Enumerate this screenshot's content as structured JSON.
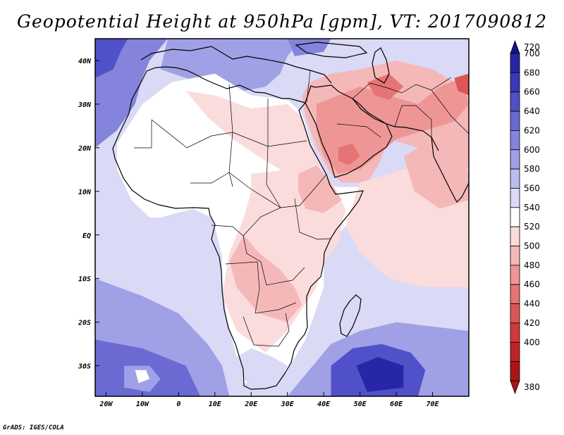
{
  "title": "Geopotential Height at 950hPa [gpm], VT: 2017090812",
  "credit": "GrADS: IGES/COLA",
  "map": {
    "lon_range": [
      -23,
      80
    ],
    "lat_range": [
      -37,
      45
    ],
    "lat_ticks": [
      {
        "value": 40,
        "label": "40N"
      },
      {
        "value": 30,
        "label": "30N"
      },
      {
        "value": 20,
        "label": "20N"
      },
      {
        "value": 10,
        "label": "10N"
      },
      {
        "value": 0,
        "label": "EQ"
      },
      {
        "value": -10,
        "label": "10S"
      },
      {
        "value": -20,
        "label": "20S"
      },
      {
        "value": -30,
        "label": "30S"
      }
    ],
    "lon_ticks": [
      {
        "value": -20,
        "label": "20W"
      },
      {
        "value": -10,
        "label": "10W"
      },
      {
        "value": 0,
        "label": "0"
      },
      {
        "value": 10,
        "label": "10E"
      },
      {
        "value": 20,
        "label": "20E"
      },
      {
        "value": 30,
        "label": "30E"
      },
      {
        "value": 40,
        "label": "40E"
      },
      {
        "value": 50,
        "label": "50E"
      },
      {
        "value": 60,
        "label": "60E"
      },
      {
        "value": 70,
        "label": "70E"
      }
    ],
    "features": [
      {
        "name": "sea-mid",
        "level": 560,
        "pts": [
          [
            -23,
            5
          ],
          [
            -8,
            3
          ],
          [
            2,
            -2
          ],
          [
            12,
            -14
          ],
          [
            16,
            -25
          ],
          [
            20,
            -32
          ],
          [
            28,
            -33
          ],
          [
            35,
            -27
          ],
          [
            42,
            -20
          ],
          [
            48,
            -15
          ],
          [
            55,
            -13
          ],
          [
            65,
            -12
          ],
          [
            80,
            -12
          ],
          [
            80,
            -37
          ],
          [
            -23,
            -37
          ]
        ]
      },
      {
        "name": "sea-south-atl",
        "level": 600,
        "pts": [
          [
            -23,
            -10
          ],
          [
            -10,
            -14
          ],
          [
            0,
            -18
          ],
          [
            8,
            -25
          ],
          [
            12,
            -30
          ],
          [
            14,
            -37
          ],
          [
            -23,
            -37
          ]
        ]
      },
      {
        "name": "sea-south-atl-deep",
        "level": 640,
        "pts": [
          [
            -23,
            -24
          ],
          [
            -10,
            -26
          ],
          [
            2,
            -30
          ],
          [
            6,
            -37
          ],
          [
            -23,
            -37
          ]
        ]
      },
      {
        "name": "sea-atl-low-ring",
        "level": 600,
        "pts": [
          [
            -15,
            -30
          ],
          [
            -8,
            -30
          ],
          [
            -5,
            -33
          ],
          [
            -8,
            -36
          ],
          [
            -15,
            -35
          ]
        ]
      },
      {
        "name": "sea-atl-low",
        "level": 540,
        "pts": [
          [
            -12,
            -31
          ],
          [
            -9,
            -31
          ],
          [
            -8,
            -33
          ],
          [
            -11,
            -34
          ]
        ]
      },
      {
        "name": "sea-indian",
        "level": 600,
        "pts": [
          [
            35,
            -32
          ],
          [
            42,
            -25
          ],
          [
            50,
            -22
          ],
          [
            60,
            -20
          ],
          [
            70,
            -21
          ],
          [
            80,
            -22
          ],
          [
            80,
            -37
          ],
          [
            30,
            -37
          ]
        ]
      },
      {
        "name": "sea-indian-deep",
        "level": 660,
        "pts": [
          [
            42,
            -30
          ],
          [
            48,
            -26
          ],
          [
            56,
            -25
          ],
          [
            64,
            -27
          ],
          [
            68,
            -31
          ],
          [
            66,
            -37
          ],
          [
            42,
            -37
          ]
        ]
      },
      {
        "name": "sea-indian-core",
        "level": 700,
        "pts": [
          [
            49,
            -30
          ],
          [
            55,
            -28
          ],
          [
            62,
            -30
          ],
          [
            62,
            -35
          ],
          [
            52,
            -36
          ]
        ]
      },
      {
        "name": "sea-north-atl",
        "level": 620,
        "pts": [
          [
            -23,
            45
          ],
          [
            -23,
            20
          ],
          [
            -17,
            24
          ],
          [
            -12,
            30
          ],
          [
            -10,
            36
          ],
          [
            -8,
            40
          ],
          [
            -3,
            45
          ]
        ]
      },
      {
        "name": "sea-north-atl-deep",
        "level": 660,
        "pts": [
          [
            -23,
            45
          ],
          [
            -23,
            36
          ],
          [
            -18,
            38
          ],
          [
            -16,
            42
          ],
          [
            -14,
            45
          ]
        ]
      },
      {
        "name": "sea-med-high",
        "level": 600,
        "pts": [
          [
            -3,
            45
          ],
          [
            -5,
            38
          ],
          [
            2,
            36
          ],
          [
            10,
            34
          ],
          [
            18,
            33
          ],
          [
            24,
            34
          ],
          [
            28,
            37
          ],
          [
            30,
            41
          ],
          [
            34,
            45
          ]
        ]
      },
      {
        "name": "sea-black",
        "level": 620,
        "pts": [
          [
            30,
            45
          ],
          [
            32,
            41
          ],
          [
            40,
            42
          ],
          [
            42,
            45
          ]
        ]
      },
      {
        "name": "sea-east-north",
        "level": 560,
        "pts": [
          [
            42,
            45
          ],
          [
            45,
            40
          ],
          [
            52,
            38
          ],
          [
            56,
            42
          ],
          [
            54,
            45
          ]
        ]
      },
      {
        "name": "land-sahara",
        "level": 540,
        "pts": [
          [
            -17,
            21
          ],
          [
            -10,
            30
          ],
          [
            -2,
            35
          ],
          [
            10,
            37
          ],
          [
            20,
            32
          ],
          [
            30,
            31
          ],
          [
            34,
            28
          ],
          [
            37,
            20
          ],
          [
            40,
            14
          ],
          [
            43,
            11
          ],
          [
            51,
            11
          ],
          [
            46,
            2
          ],
          [
            40,
            -4
          ],
          [
            40,
            -12
          ],
          [
            35,
            -24
          ],
          [
            30,
            -31
          ],
          [
            24,
            -34
          ],
          [
            18,
            -34
          ],
          [
            16,
            -28
          ],
          [
            13,
            -18
          ],
          [
            12,
            -10
          ],
          [
            12,
            -5
          ],
          [
            10,
            2
          ],
          [
            9,
            4
          ],
          [
            4,
            6
          ],
          [
            -5,
            4
          ],
          [
            -8,
            4
          ],
          [
            -13,
            8
          ],
          [
            -17,
            15
          ]
        ]
      },
      {
        "name": "land-north-pink",
        "level": 520,
        "pts": [
          [
            2,
            33
          ],
          [
            10,
            32
          ],
          [
            20,
            29
          ],
          [
            30,
            30
          ],
          [
            34,
            27
          ],
          [
            37,
            20
          ],
          [
            40,
            14
          ],
          [
            30,
            14
          ],
          [
            22,
            18
          ],
          [
            15,
            22
          ],
          [
            8,
            27
          ]
        ]
      },
      {
        "name": "land-east-africa",
        "level": 520,
        "pts": [
          [
            20,
            14
          ],
          [
            30,
            15
          ],
          [
            38,
            16
          ],
          [
            42,
            12
          ],
          [
            46,
            6
          ],
          [
            44,
            -2
          ],
          [
            40,
            -6
          ],
          [
            38,
            -12
          ],
          [
            34,
            -17
          ],
          [
            30,
            -22
          ],
          [
            24,
            -27
          ],
          [
            16,
            -22
          ],
          [
            12,
            -14
          ],
          [
            14,
            -4
          ],
          [
            18,
            4
          ],
          [
            20,
            10
          ]
        ]
      },
      {
        "name": "land-congo",
        "level": 500,
        "pts": [
          [
            18,
            0
          ],
          [
            22,
            -4
          ],
          [
            28,
            -8
          ],
          [
            32,
            -12
          ],
          [
            34,
            -16
          ],
          [
            30,
            -20
          ],
          [
            22,
            -18
          ],
          [
            16,
            -12
          ],
          [
            14,
            -6
          ]
        ]
      },
      {
        "name": "land-ethiopia",
        "level": 500,
        "pts": [
          [
            33,
            14
          ],
          [
            38,
            16
          ],
          [
            42,
            12
          ],
          [
            45,
            8
          ],
          [
            40,
            5
          ],
          [
            35,
            6
          ],
          [
            33,
            10
          ]
        ]
      },
      {
        "name": "land-cape",
        "level": 560,
        "pts": [
          [
            16,
            -28
          ],
          [
            20,
            -26
          ],
          [
            26,
            -28
          ],
          [
            30,
            -30
          ],
          [
            28,
            -33
          ],
          [
            20,
            -35
          ],
          [
            17,
            -32
          ]
        ]
      },
      {
        "name": "arabia",
        "level": 500,
        "pts": [
          [
            34,
            32
          ],
          [
            36,
            35
          ],
          [
            42,
            37
          ],
          [
            50,
            38
          ],
          [
            60,
            40
          ],
          [
            70,
            38
          ],
          [
            80,
            33
          ],
          [
            80,
            16
          ],
          [
            76,
            10
          ],
          [
            72,
            12
          ],
          [
            66,
            20
          ],
          [
            58,
            22
          ],
          [
            55,
            16
          ],
          [
            52,
            12
          ],
          [
            45,
            12
          ],
          [
            42,
            14
          ],
          [
            38,
            20
          ],
          [
            35,
            27
          ]
        ]
      },
      {
        "name": "arabia-deep",
        "level": 480,
        "pts": [
          [
            38,
            30
          ],
          [
            44,
            32
          ],
          [
            50,
            34
          ],
          [
            58,
            32
          ],
          [
            66,
            30
          ],
          [
            72,
            34
          ],
          [
            78,
            36
          ],
          [
            80,
            30
          ],
          [
            76,
            26
          ],
          [
            68,
            24
          ],
          [
            60,
            22
          ],
          [
            56,
            19
          ],
          [
            50,
            15
          ],
          [
            44,
            14
          ],
          [
            40,
            18
          ],
          [
            38,
            24
          ]
        ]
      },
      {
        "name": "arabia-core",
        "level": 460,
        "pts": [
          [
            44,
            20
          ],
          [
            48,
            21
          ],
          [
            50,
            18
          ],
          [
            47,
            16
          ],
          [
            44,
            17
          ]
        ]
      },
      {
        "name": "iran-core",
        "level": 460,
        "pts": [
          [
            52,
            35
          ],
          [
            58,
            37
          ],
          [
            62,
            34
          ],
          [
            58,
            31
          ],
          [
            54,
            32
          ]
        ]
      },
      {
        "name": "pakistan-core",
        "level": 440,
        "pts": [
          [
            76,
            36
          ],
          [
            80,
            37
          ],
          [
            80,
            32
          ],
          [
            77,
            33
          ]
        ]
      },
      {
        "name": "india-indian",
        "level": 520,
        "pts": [
          [
            50,
            12
          ],
          [
            58,
            14
          ],
          [
            66,
            16
          ],
          [
            76,
            10
          ],
          [
            80,
            8
          ],
          [
            80,
            -12
          ],
          [
            68,
            -12
          ],
          [
            58,
            -10
          ],
          [
            50,
            -4
          ],
          [
            46,
            2
          ]
        ]
      },
      {
        "name": "india-inner",
        "level": 500,
        "pts": [
          [
            62,
            18
          ],
          [
            70,
            22
          ],
          [
            78,
            18
          ],
          [
            80,
            14
          ],
          [
            80,
            8
          ],
          [
            72,
            6
          ],
          [
            65,
            10
          ]
        ]
      }
    ]
  },
  "colorbar": {
    "levels": [
      720,
      700,
      680,
      660,
      640,
      620,
      600,
      580,
      560,
      540,
      520,
      500,
      480,
      460,
      440,
      420,
      400,
      380
    ],
    "colors": [
      "#141488",
      "#2626a6",
      "#3a3ab8",
      "#5050c8",
      "#6a6ad2",
      "#8484dc",
      "#a0a0e6",
      "#bcbcef",
      "#dadaf7",
      "#ffffff",
      "#fbdcdc",
      "#f5b8b8",
      "#ee9696",
      "#e67474",
      "#dc5656",
      "#d03a3a",
      "#c02424",
      "#aa1414"
    ]
  }
}
